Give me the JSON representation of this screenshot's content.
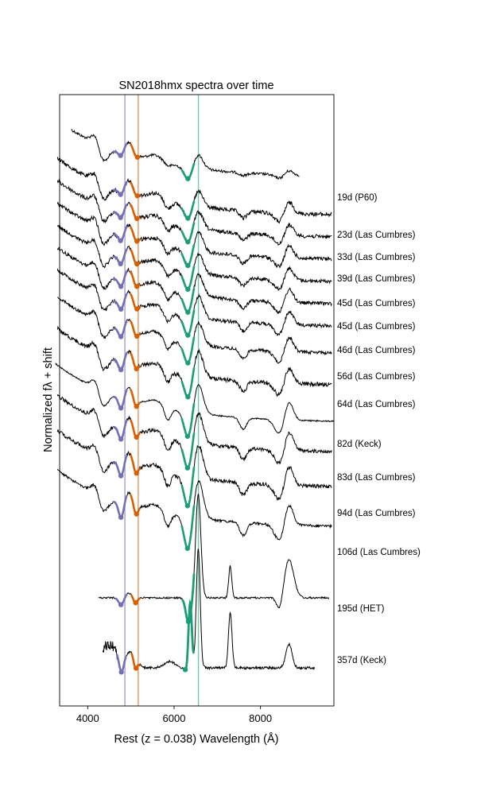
{
  "chart_data": {
    "type": "line",
    "title": "SN2018hmx spectra over time",
    "xlabel": "Rest (z = 0.038) Wavelength (Å)",
    "ylabel": "Normalized fλ + shift",
    "xlim": [
      3350,
      9700
    ],
    "x_ticks": [
      4000,
      6000,
      8000
    ],
    "x_tick_labels": [
      "4000",
      "6000",
      "8000"
    ],
    "y_ticks_shown": false,
    "grid": false,
    "reference_lines": [
      {
        "x": 4861,
        "color": "#a89fd0"
      },
      {
        "x": 5169,
        "color": "#e8975a"
      },
      {
        "x": 6563,
        "color": "#72c9a4"
      }
    ],
    "feature_colors": {
      "h_beta": "#7570b3",
      "fe_ii": "#d95f02",
      "h_alpha": "#1b9e77"
    },
    "spectra": [
      {
        "label": "19d (P60)",
        "x_range": [
          3620,
          8900
        ]
      },
      {
        "label": "23d (Las Cumbres)",
        "x_range": [
          3300,
          9650
        ]
      },
      {
        "label": "33d (Las Cumbres)",
        "x_range": [
          3300,
          9650
        ]
      },
      {
        "label": "39d (Las Cumbres)",
        "x_range": [
          3300,
          9650
        ]
      },
      {
        "label": "45d (Las Cumbres)",
        "x_range": [
          3300,
          9650
        ]
      },
      {
        "label": "45d (Las Cumbres)",
        "x_range": [
          3300,
          9650
        ]
      },
      {
        "label": "46d (Las Cumbres)",
        "x_range": [
          3300,
          9650
        ]
      },
      {
        "label": "56d (Las Cumbres)",
        "x_range": [
          3300,
          9650
        ]
      },
      {
        "label": "64d (Las Cumbres)",
        "x_range": [
          3300,
          9650
        ]
      },
      {
        "label": "82d (Keck)",
        "x_range": [
          3250,
          9700
        ]
      },
      {
        "label": "83d (Las Cumbres)",
        "x_range": [
          3300,
          9650
        ]
      },
      {
        "label": "94d (Las Cumbres)",
        "x_range": [
          3300,
          9650
        ]
      },
      {
        "label": "106d (Las Cumbres)",
        "x_range": [
          3300,
          9650
        ]
      },
      {
        "label": "195d (HET)",
        "x_range": [
          4250,
          9600
        ]
      },
      {
        "label": "357d (Keck)",
        "x_range": [
          4350,
          9250
        ]
      }
    ]
  }
}
